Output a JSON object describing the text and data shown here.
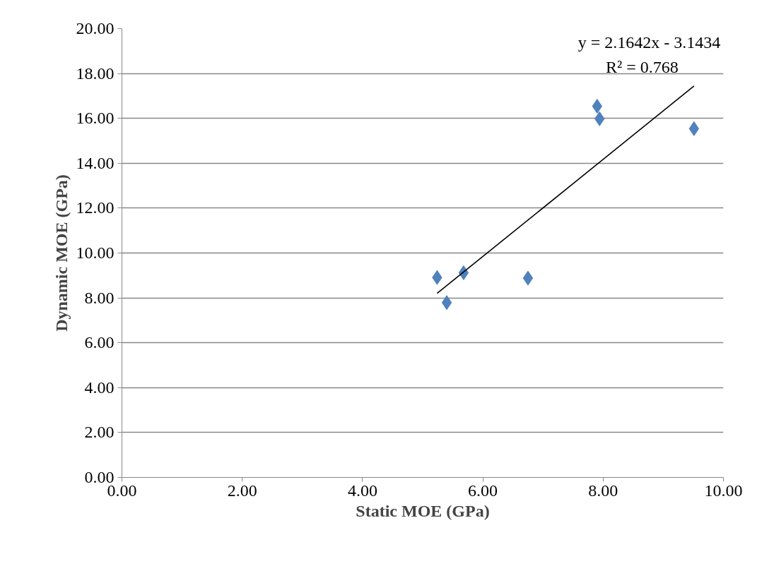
{
  "chart_data": {
    "type": "scatter",
    "xlabel": "Static MOE (GPa)",
    "ylabel": "Dynamic MOE (GPa)",
    "x": [
      5.24,
      5.4,
      5.68,
      6.75,
      7.9,
      7.94,
      9.51
    ],
    "series": [
      {
        "type": "scatter",
        "color": "#4f81bd",
        "marker": "diamond",
        "values": [
          8.91,
          7.79,
          9.12,
          8.88,
          16.54,
          15.98,
          15.54
        ]
      },
      {
        "type": "line",
        "color": "#000000",
        "marker": "none",
        "line_style": "solid",
        "x": [
          5.24,
          9.51
        ],
        "values": [
          8.2,
          17.44
        ]
      }
    ],
    "annotations": [
      "y = 2.1642x - 3.1434",
      "R² = 0.768"
    ],
    "xlim": [
      0,
      10
    ],
    "ylim": [
      0,
      20
    ],
    "xticks": [
      {
        "value": 0,
        "label": "0.00"
      },
      {
        "value": 2,
        "label": "2.00"
      },
      {
        "value": 4,
        "label": "4.00"
      },
      {
        "value": 6,
        "label": "6.00"
      },
      {
        "value": 8,
        "label": "8.00"
      },
      {
        "value": 10,
        "label": "10.00"
      }
    ],
    "yticks": [
      {
        "value": 0,
        "label": "0.00"
      },
      {
        "value": 2,
        "label": "2.00"
      },
      {
        "value": 4,
        "label": "4.00"
      },
      {
        "value": 6,
        "label": "6.00"
      },
      {
        "value": 8,
        "label": "8.00"
      },
      {
        "value": 10,
        "label": "10.00"
      },
      {
        "value": 12,
        "label": "12.00"
      },
      {
        "value": 14,
        "label": "14.00"
      },
      {
        "value": 16,
        "label": "16.00"
      },
      {
        "value": 18,
        "label": "18.00"
      },
      {
        "value": 20,
        "label": "20.00"
      }
    ],
    "grid": "y"
  }
}
